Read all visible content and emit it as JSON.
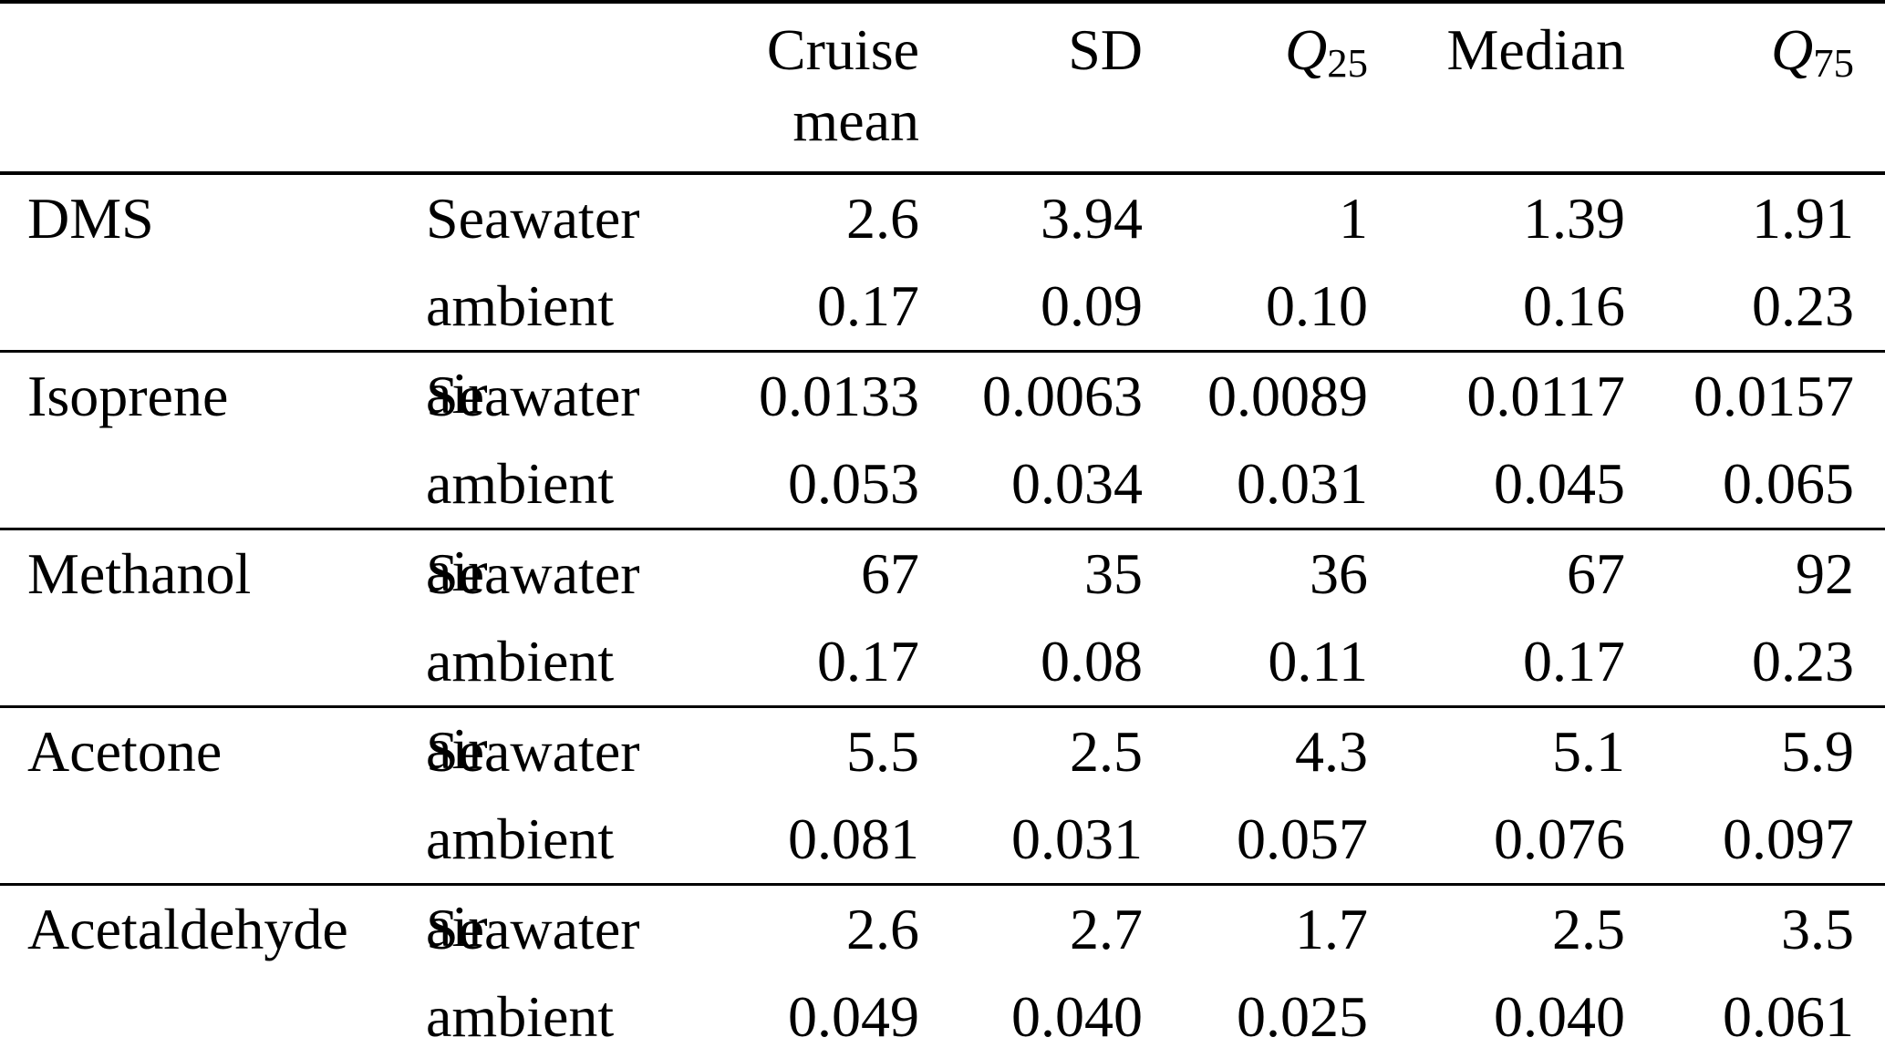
{
  "table": {
    "colors": {
      "text": "#000000",
      "background": "#ffffff",
      "rule": "#000000"
    },
    "columns": {
      "compound_header": "",
      "medium_header": "",
      "cruise_mean": {
        "line1": "Cruise",
        "line2": "mean"
      },
      "sd": "SD",
      "q25": {
        "base": "Q",
        "sub": "25"
      },
      "median": "Median",
      "q75": {
        "base": "Q",
        "sub": "75"
      }
    },
    "sections": [
      {
        "compound": "DMS",
        "rows": [
          {
            "medium": "Seawater",
            "values": [
              "2.6",
              "3.94",
              "1",
              "1.39",
              "1.91"
            ]
          },
          {
            "medium": "ambient air",
            "values": [
              "0.17",
              "0.09",
              "0.10",
              "0.16",
              "0.23"
            ]
          }
        ]
      },
      {
        "compound": "Isoprene",
        "rows": [
          {
            "medium": "Seawater",
            "values": [
              "0.0133",
              "0.0063",
              "0.0089",
              "0.0117",
              "0.0157"
            ]
          },
          {
            "medium": "ambient air",
            "values": [
              "0.053",
              "0.034",
              "0.031",
              "0.045",
              "0.065"
            ]
          }
        ]
      },
      {
        "compound": "Methanol",
        "rows": [
          {
            "medium": "Seawater",
            "values": [
              "67",
              "35",
              "36",
              "67",
              "92"
            ]
          },
          {
            "medium": "ambient air",
            "values": [
              "0.17",
              "0.08",
              "0.11",
              "0.17",
              "0.23"
            ]
          }
        ]
      },
      {
        "compound": "Acetone",
        "rows": [
          {
            "medium": "Seawater",
            "values": [
              "5.5",
              "2.5",
              "4.3",
              "5.1",
              "5.9"
            ]
          },
          {
            "medium": "ambient air",
            "values": [
              "0.081",
              "0.031",
              "0.057",
              "0.076",
              "0.097"
            ]
          }
        ]
      },
      {
        "compound": "Acetaldehyde",
        "rows": [
          {
            "medium": "Seawater",
            "values": [
              "2.6",
              "2.7",
              "1.7",
              "2.5",
              "3.5"
            ]
          },
          {
            "medium": "ambient air",
            "values": [
              "0.049",
              "0.040",
              "0.025",
              "0.040",
              "0.061"
            ]
          }
        ]
      }
    ]
  }
}
